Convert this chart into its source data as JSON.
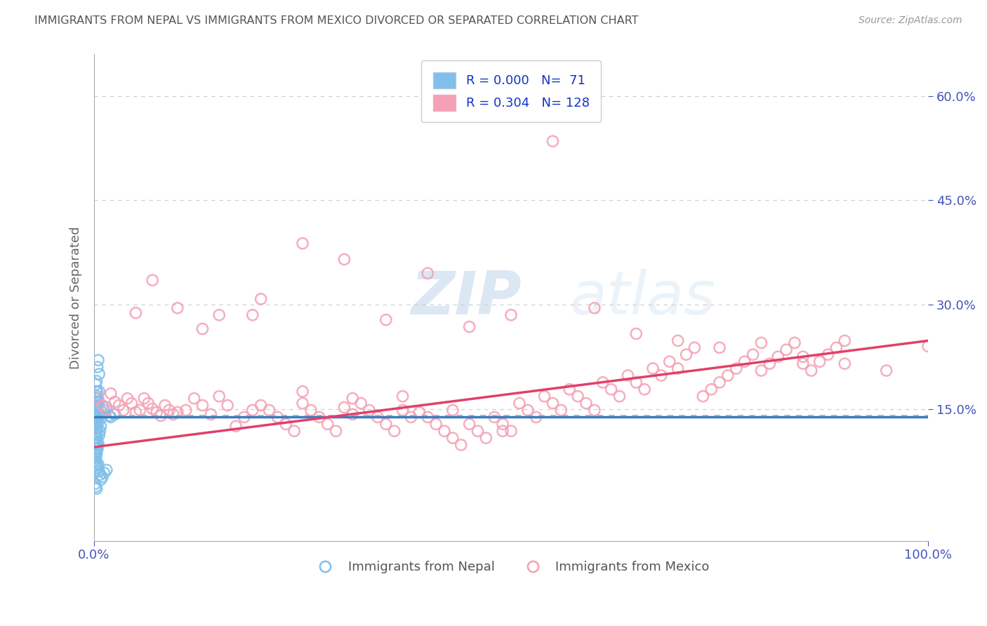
{
  "title": "IMMIGRANTS FROM NEPAL VS IMMIGRANTS FROM MEXICO DIVORCED OR SEPARATED CORRELATION CHART",
  "source": "Source: ZipAtlas.com",
  "ylabel": "Divorced or Separated",
  "y_tick_labels": [
    "15.0%",
    "30.0%",
    "45.0%",
    "60.0%"
  ],
  "y_tick_values": [
    0.15,
    0.3,
    0.45,
    0.6
  ],
  "x_min": 0.0,
  "x_max": 1.0,
  "y_min": -0.04,
  "y_max": 0.66,
  "nepal_R": 0.0,
  "nepal_N": 71,
  "mexico_R": 0.304,
  "mexico_N": 128,
  "legend_labels": [
    "Immigrants from Nepal",
    "Immigrants from Mexico"
  ],
  "nepal_color": "#7fbfea",
  "mexico_color": "#f4a0b5",
  "nepal_line_color": "#3a7bbf",
  "mexico_line_color": "#e0406a",
  "reference_line_y": 0.14,
  "reference_line_color": "#b0b0b0",
  "background_color": "#ffffff",
  "grid_color": "#cccccc",
  "title_color": "#555555",
  "axis_label_color": "#4455bb",
  "legend_text_color": "#1133cc",
  "nepal_line_y_start": 0.138,
  "nepal_line_y_end": 0.138,
  "mexico_line_y_start": 0.095,
  "mexico_line_y_end": 0.248,
  "nepal_scatter_x": [
    0.002,
    0.003,
    0.004,
    0.005,
    0.006,
    0.003,
    0.004,
    0.005,
    0.006,
    0.002,
    0.003,
    0.004,
    0.002,
    0.003,
    0.004,
    0.005,
    0.002,
    0.003,
    0.001,
    0.002,
    0.003,
    0.004,
    0.005,
    0.002,
    0.003,
    0.001,
    0.002,
    0.003,
    0.004,
    0.002,
    0.003,
    0.002,
    0.003,
    0.004,
    0.005,
    0.006,
    0.007,
    0.008,
    0.009,
    0.01,
    0.012,
    0.015,
    0.018,
    0.02,
    0.025,
    0.002,
    0.003,
    0.004,
    0.005,
    0.002,
    0.003,
    0.004,
    0.002,
    0.003,
    0.001,
    0.002,
    0.003,
    0.004,
    0.002,
    0.003,
    0.004,
    0.005,
    0.006,
    0.007,
    0.008,
    0.01,
    0.012,
    0.015,
    0.001,
    0.002,
    0.003
  ],
  "nepal_scatter_y": [
    0.155,
    0.165,
    0.14,
    0.16,
    0.175,
    0.19,
    0.21,
    0.22,
    0.2,
    0.155,
    0.145,
    0.135,
    0.165,
    0.175,
    0.155,
    0.145,
    0.185,
    0.175,
    0.14,
    0.135,
    0.145,
    0.138,
    0.142,
    0.128,
    0.132,
    0.152,
    0.148,
    0.158,
    0.168,
    0.118,
    0.125,
    0.108,
    0.115,
    0.122,
    0.13,
    0.112,
    0.118,
    0.125,
    0.138,
    0.145,
    0.148,
    0.152,
    0.14,
    0.138,
    0.142,
    0.102,
    0.108,
    0.095,
    0.1,
    0.088,
    0.092,
    0.098,
    0.082,
    0.088,
    0.075,
    0.078,
    0.085,
    0.092,
    0.068,
    0.072,
    0.065,
    0.07,
    0.06,
    0.055,
    0.048,
    0.052,
    0.058,
    0.062,
    0.042,
    0.038,
    0.035
  ],
  "mexico_scatter_x": [
    0.005,
    0.01,
    0.015,
    0.02,
    0.025,
    0.03,
    0.035,
    0.04,
    0.045,
    0.05,
    0.055,
    0.06,
    0.065,
    0.07,
    0.075,
    0.08,
    0.085,
    0.09,
    0.095,
    0.1,
    0.11,
    0.12,
    0.13,
    0.14,
    0.15,
    0.16,
    0.17,
    0.18,
    0.19,
    0.2,
    0.21,
    0.22,
    0.23,
    0.24,
    0.25,
    0.26,
    0.27,
    0.28,
    0.29,
    0.3,
    0.31,
    0.32,
    0.33,
    0.34,
    0.35,
    0.36,
    0.37,
    0.38,
    0.39,
    0.4,
    0.41,
    0.42,
    0.43,
    0.44,
    0.45,
    0.46,
    0.47,
    0.48,
    0.49,
    0.5,
    0.51,
    0.52,
    0.53,
    0.54,
    0.55,
    0.56,
    0.57,
    0.58,
    0.59,
    0.6,
    0.61,
    0.62,
    0.63,
    0.64,
    0.65,
    0.66,
    0.67,
    0.68,
    0.69,
    0.7,
    0.71,
    0.72,
    0.73,
    0.74,
    0.75,
    0.76,
    0.77,
    0.78,
    0.79,
    0.8,
    0.81,
    0.82,
    0.83,
    0.84,
    0.85,
    0.86,
    0.87,
    0.88,
    0.89,
    0.9,
    0.05,
    0.1,
    0.15,
    0.2,
    0.25,
    0.3,
    0.35,
    0.4,
    0.45,
    0.5,
    0.55,
    0.6,
    0.65,
    0.7,
    0.75,
    0.8,
    0.85,
    0.9,
    0.95,
    1.0,
    0.07,
    0.13,
    0.19,
    0.25,
    0.31,
    0.37,
    0.43,
    0.49
  ],
  "mexico_scatter_y": [
    0.165,
    0.155,
    0.148,
    0.172,
    0.16,
    0.155,
    0.148,
    0.165,
    0.158,
    0.145,
    0.148,
    0.165,
    0.158,
    0.15,
    0.145,
    0.14,
    0.155,
    0.148,
    0.142,
    0.145,
    0.148,
    0.165,
    0.155,
    0.142,
    0.168,
    0.155,
    0.125,
    0.138,
    0.148,
    0.155,
    0.148,
    0.138,
    0.128,
    0.118,
    0.158,
    0.148,
    0.138,
    0.128,
    0.118,
    0.152,
    0.142,
    0.158,
    0.148,
    0.138,
    0.128,
    0.118,
    0.148,
    0.138,
    0.145,
    0.138,
    0.128,
    0.118,
    0.108,
    0.098,
    0.128,
    0.118,
    0.108,
    0.138,
    0.128,
    0.118,
    0.158,
    0.148,
    0.138,
    0.168,
    0.158,
    0.148,
    0.178,
    0.168,
    0.158,
    0.148,
    0.188,
    0.178,
    0.168,
    0.198,
    0.188,
    0.178,
    0.208,
    0.198,
    0.218,
    0.208,
    0.228,
    0.238,
    0.168,
    0.178,
    0.188,
    0.198,
    0.208,
    0.218,
    0.228,
    0.205,
    0.215,
    0.225,
    0.235,
    0.245,
    0.215,
    0.205,
    0.218,
    0.228,
    0.238,
    0.248,
    0.288,
    0.295,
    0.285,
    0.308,
    0.388,
    0.365,
    0.278,
    0.345,
    0.268,
    0.285,
    0.535,
    0.295,
    0.258,
    0.248,
    0.238,
    0.245,
    0.225,
    0.215,
    0.205,
    0.24,
    0.335,
    0.265,
    0.285,
    0.175,
    0.165,
    0.168,
    0.148,
    0.118
  ]
}
